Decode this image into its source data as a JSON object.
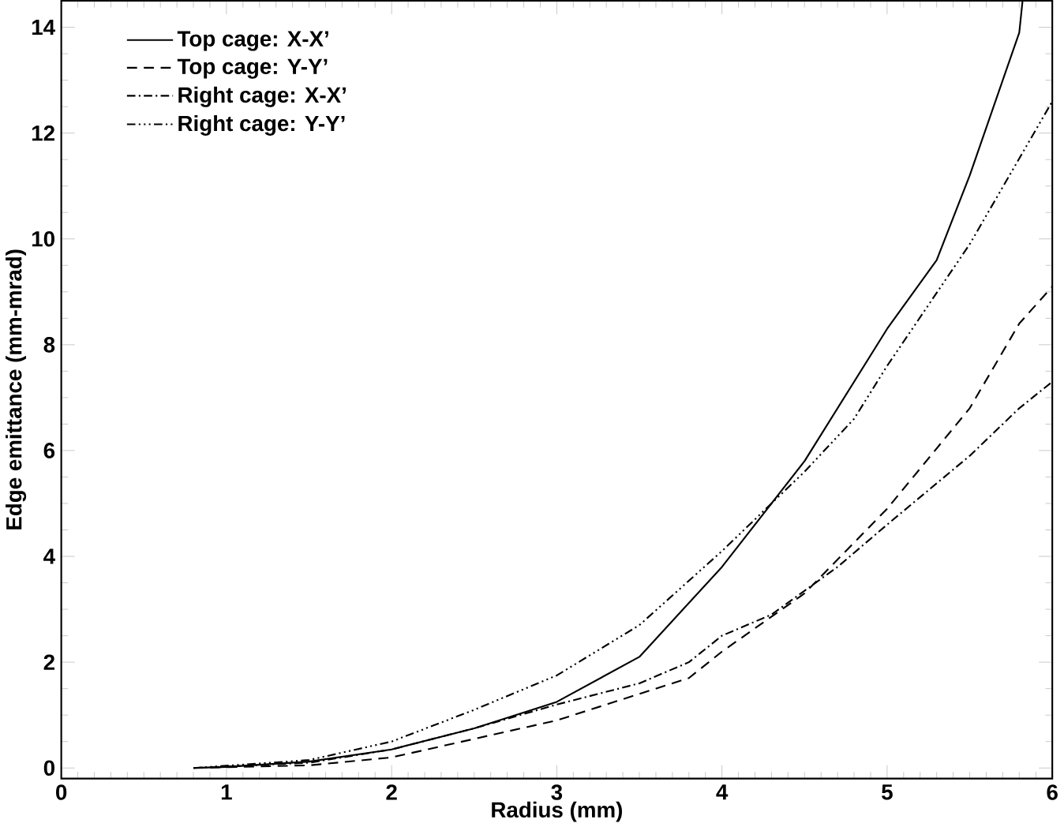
{
  "chart_data": {
    "type": "line",
    "xlabel": "Radius (mm)",
    "ylabel": "Edge emittance (mm-mrad)",
    "xlim": [
      0,
      6
    ],
    "xticks": [
      0,
      1,
      2,
      3,
      4,
      5,
      6
    ],
    "ylim": [
      -0.2,
      14.5
    ],
    "yticks": [
      0,
      2,
      4,
      6,
      8,
      10,
      12,
      14
    ],
    "grid": false,
    "legend": "top left",
    "marker": "none",
    "series": [
      {
        "name": "Top cage:  X-X’",
        "color": "#000000",
        "line_style": "solid",
        "x": [
          0.8,
          1.0,
          1.5,
          2.0,
          2.5,
          3.0,
          3.5,
          4.0,
          4.5,
          5.0,
          5.3,
          5.5,
          5.8,
          5.82
        ],
        "values": [
          0,
          0.02,
          0.12,
          0.35,
          0.75,
          1.25,
          2.1,
          3.8,
          5.8,
          8.3,
          9.6,
          11.2,
          13.9,
          14.5
        ]
      },
      {
        "name": "Top cage:  Y-Y’",
        "color": "#000000",
        "line_style": "dashed",
        "x": [
          0.8,
          1.5,
          2.0,
          2.5,
          3.0,
          3.5,
          3.8,
          4.0,
          4.5,
          5.0,
          5.5,
          5.8,
          6.0
        ],
        "values": [
          0,
          0.05,
          0.2,
          0.55,
          0.9,
          1.4,
          1.7,
          2.2,
          3.3,
          4.9,
          6.8,
          8.4,
          9.1
        ]
      },
      {
        "name": "Right cage:  X-X’",
        "color": "#000000",
        "line_style": "dashdot",
        "x": [
          0.8,
          1.5,
          2.0,
          2.5,
          3.0,
          3.5,
          3.8,
          4.0,
          4.3,
          4.7,
          5.0,
          5.5,
          5.8,
          6.0
        ],
        "values": [
          0,
          0.1,
          0.35,
          0.75,
          1.2,
          1.6,
          2.0,
          2.5,
          2.9,
          3.8,
          4.6,
          5.9,
          6.8,
          7.3
        ]
      },
      {
        "name": "Right cage:  Y-Y’",
        "color": "#000000",
        "line_style": "dashdotdotdot",
        "x": [
          0.8,
          1.5,
          2.0,
          2.5,
          3.0,
          3.5,
          4.0,
          4.5,
          4.8,
          5.0,
          5.5,
          6.0
        ],
        "values": [
          0,
          0.15,
          0.5,
          1.1,
          1.75,
          2.7,
          4.1,
          5.6,
          6.6,
          7.6,
          9.9,
          12.6
        ]
      }
    ]
  }
}
